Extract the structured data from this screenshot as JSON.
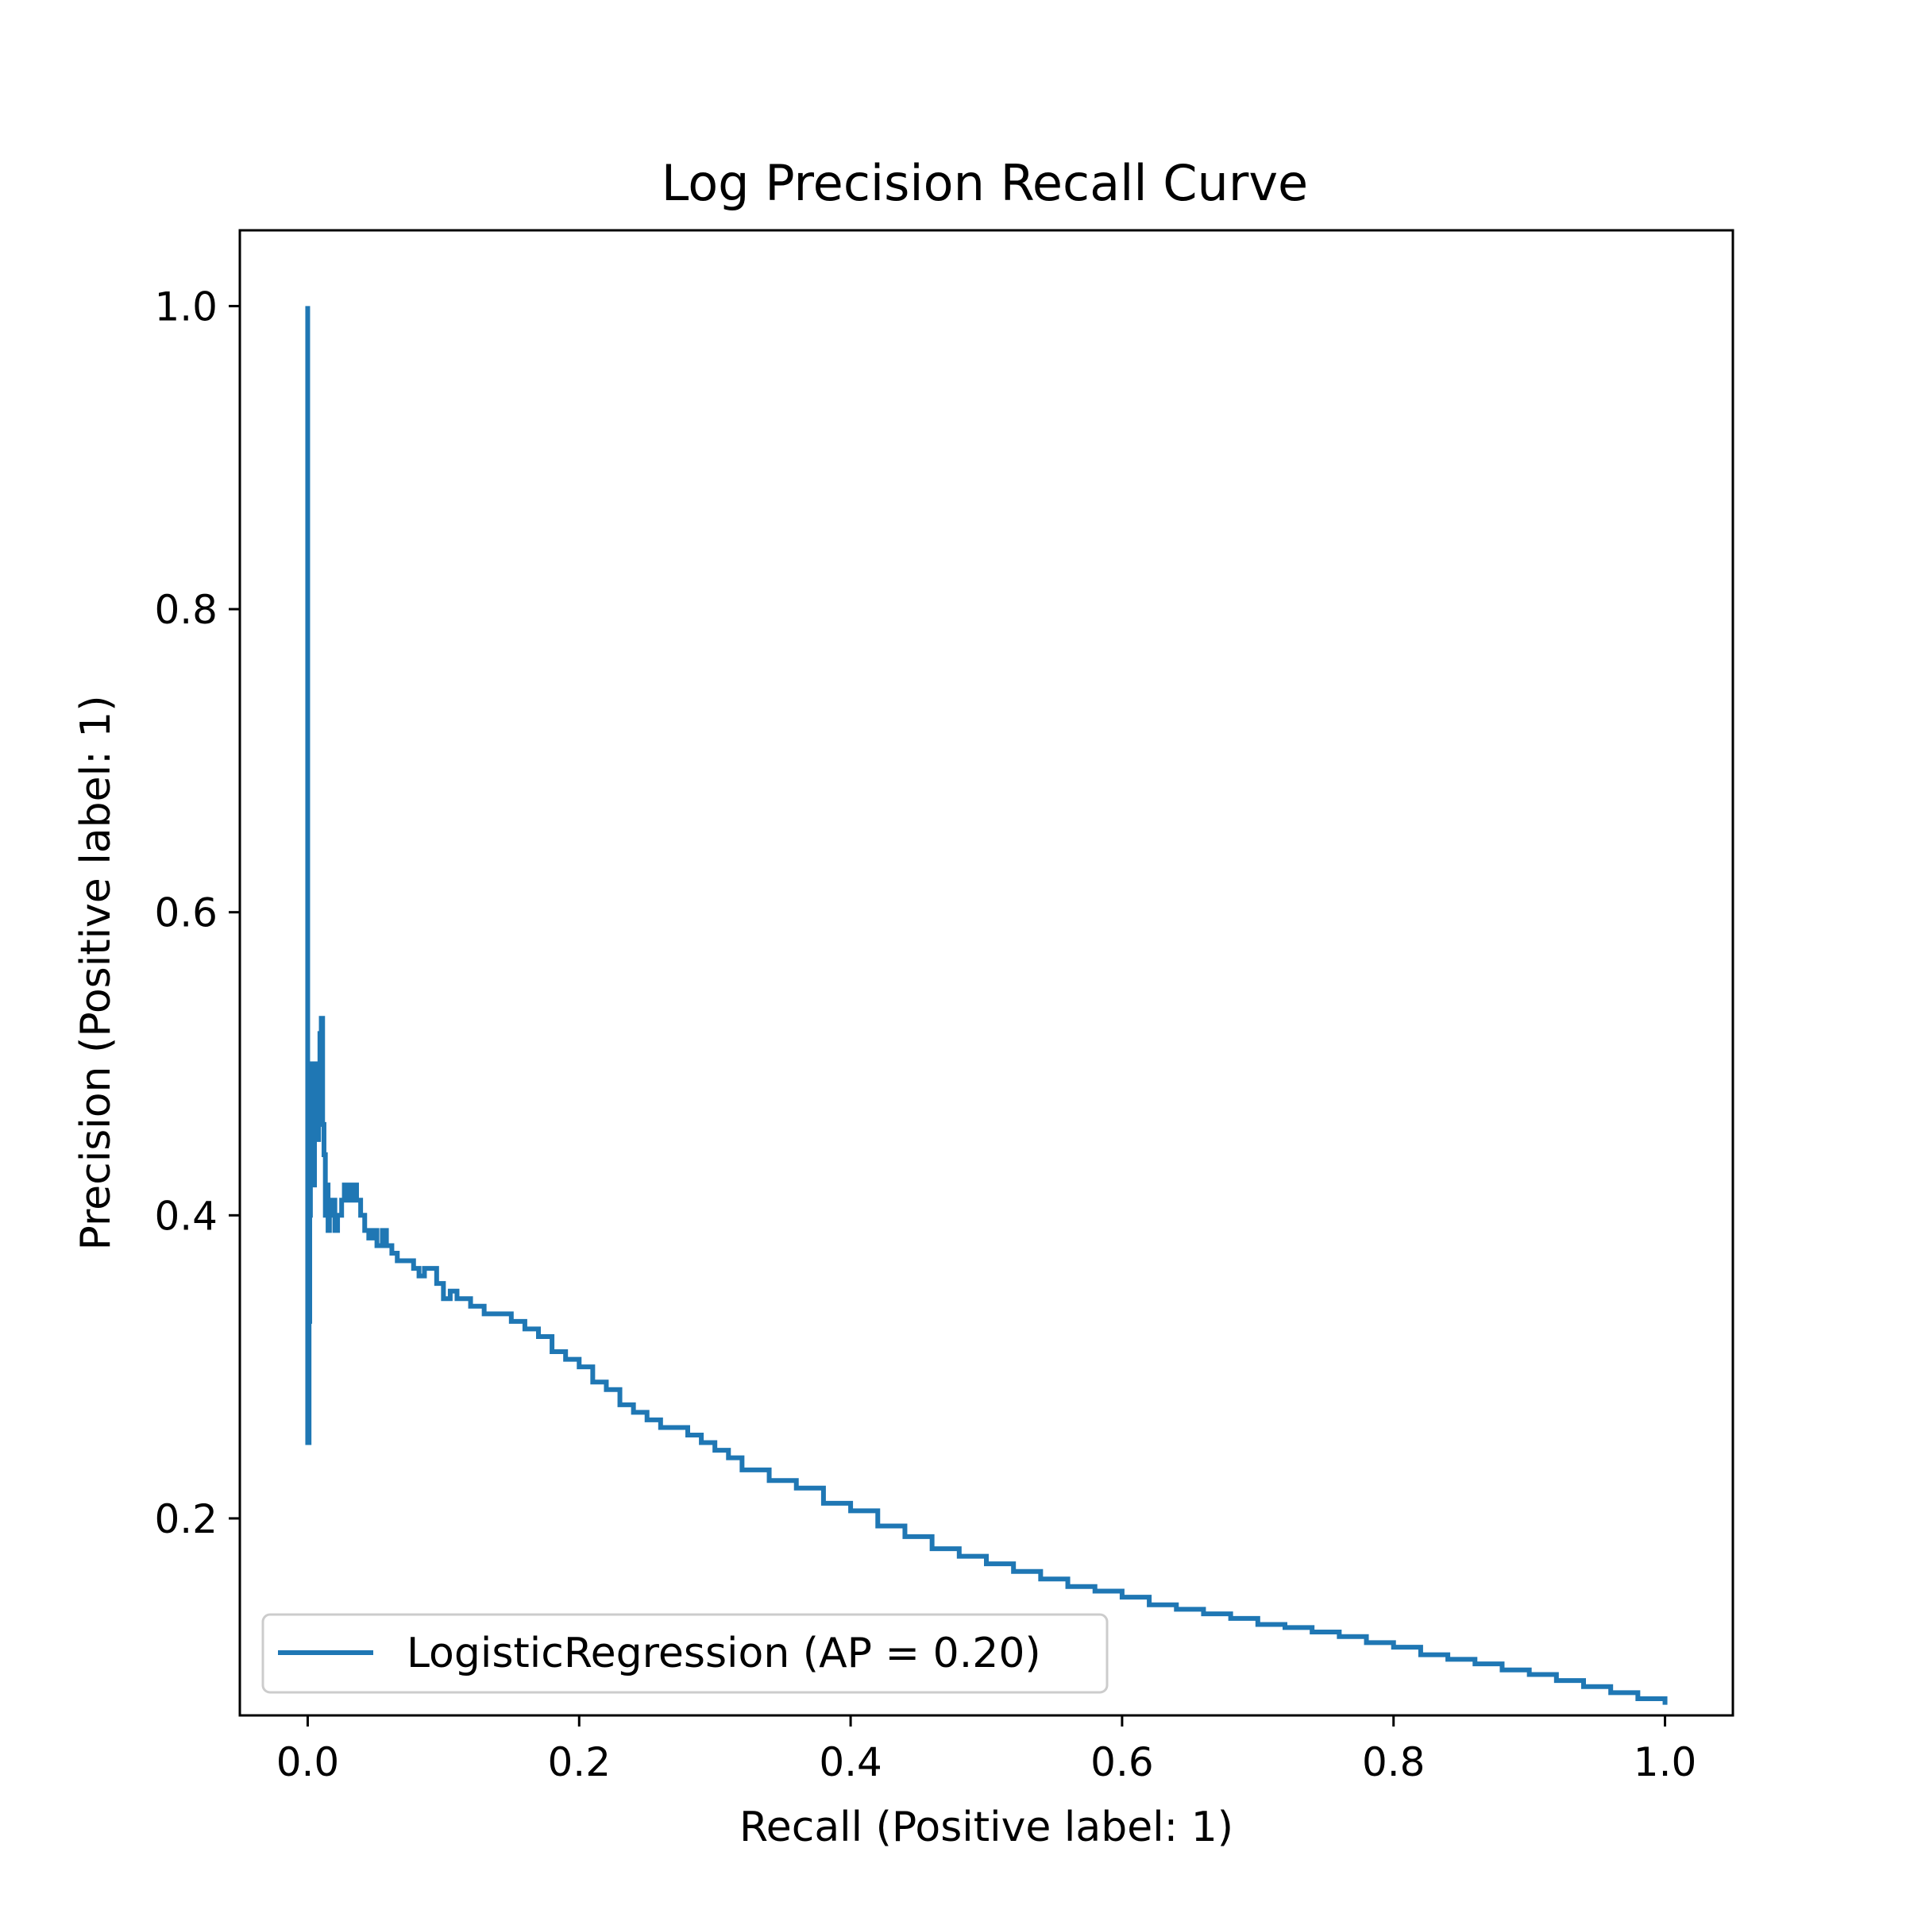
{
  "chart_data": {
    "type": "line",
    "title": "Log Precision Recall Curve",
    "xlabel": "Recall (Positive label: 1)",
    "ylabel": "Precision (Positive label: 1)",
    "xlim": [
      -0.05,
      1.05
    ],
    "ylim": [
      0.07,
      1.05
    ],
    "xticks": [
      0.0,
      0.2,
      0.4,
      0.6,
      0.8,
      1.0
    ],
    "xtick_labels": [
      "0.0",
      "0.2",
      "0.4",
      "0.6",
      "0.8",
      "1.0"
    ],
    "yticks": [
      0.2,
      0.4,
      0.6,
      0.8,
      1.0
    ],
    "ytick_labels": [
      "0.2",
      "0.4",
      "0.6",
      "0.8",
      "1.0"
    ],
    "grid": false,
    "legend_position": "lower-left",
    "series": [
      {
        "name": "LogisticRegression (AP = 0.20)",
        "color": "#1f77b4",
        "x": [
          0.0,
          0.0,
          0.0005,
          0.001,
          0.0015,
          0.002,
          0.003,
          0.004,
          0.005,
          0.006,
          0.007,
          0.008,
          0.009,
          0.01,
          0.011,
          0.012,
          0.013,
          0.014,
          0.015,
          0.016,
          0.017,
          0.018,
          0.02,
          0.022,
          0.025,
          0.027,
          0.03,
          0.033,
          0.036,
          0.039,
          0.042,
          0.045,
          0.048,
          0.051,
          0.055,
          0.058,
          0.062,
          0.066,
          0.07,
          0.074,
          0.078,
          0.082,
          0.086,
          0.09,
          0.095,
          0.1,
          0.105,
          0.11,
          0.115,
          0.12,
          0.13,
          0.14,
          0.15,
          0.16,
          0.17,
          0.18,
          0.19,
          0.2,
          0.21,
          0.22,
          0.23,
          0.24,
          0.25,
          0.26,
          0.27,
          0.28,
          0.29,
          0.3,
          0.31,
          0.32,
          0.34,
          0.36,
          0.38,
          0.4,
          0.42,
          0.44,
          0.46,
          0.48,
          0.5,
          0.52,
          0.54,
          0.56,
          0.58,
          0.6,
          0.62,
          0.64,
          0.66,
          0.68,
          0.7,
          0.72,
          0.74,
          0.76,
          0.78,
          0.8,
          0.82,
          0.84,
          0.86,
          0.88,
          0.9,
          0.92,
          0.94,
          0.96,
          0.98,
          1.0
        ],
        "y": [
          1.0,
          0.25,
          0.25,
          0.33,
          0.4,
          0.45,
          0.5,
          0.42,
          0.49,
          0.5,
          0.45,
          0.5,
          0.52,
          0.53,
          0.46,
          0.44,
          0.4,
          0.42,
          0.39,
          0.41,
          0.4,
          0.41,
          0.39,
          0.4,
          0.41,
          0.42,
          0.41,
          0.42,
          0.41,
          0.4,
          0.39,
          0.385,
          0.39,
          0.38,
          0.39,
          0.38,
          0.375,
          0.37,
          0.37,
          0.37,
          0.365,
          0.36,
          0.365,
          0.365,
          0.355,
          0.345,
          0.35,
          0.345,
          0.345,
          0.34,
          0.335,
          0.335,
          0.33,
          0.325,
          0.32,
          0.31,
          0.305,
          0.3,
          0.29,
          0.285,
          0.275,
          0.27,
          0.265,
          0.26,
          0.26,
          0.255,
          0.25,
          0.245,
          0.24,
          0.232,
          0.225,
          0.22,
          0.21,
          0.205,
          0.195,
          0.188,
          0.18,
          0.175,
          0.17,
          0.165,
          0.16,
          0.155,
          0.152,
          0.148,
          0.143,
          0.14,
          0.137,
          0.134,
          0.13,
          0.128,
          0.125,
          0.122,
          0.118,
          0.115,
          0.11,
          0.107,
          0.104,
          0.1,
          0.097,
          0.093,
          0.089,
          0.085,
          0.081,
          0.077
        ]
      }
    ]
  }
}
